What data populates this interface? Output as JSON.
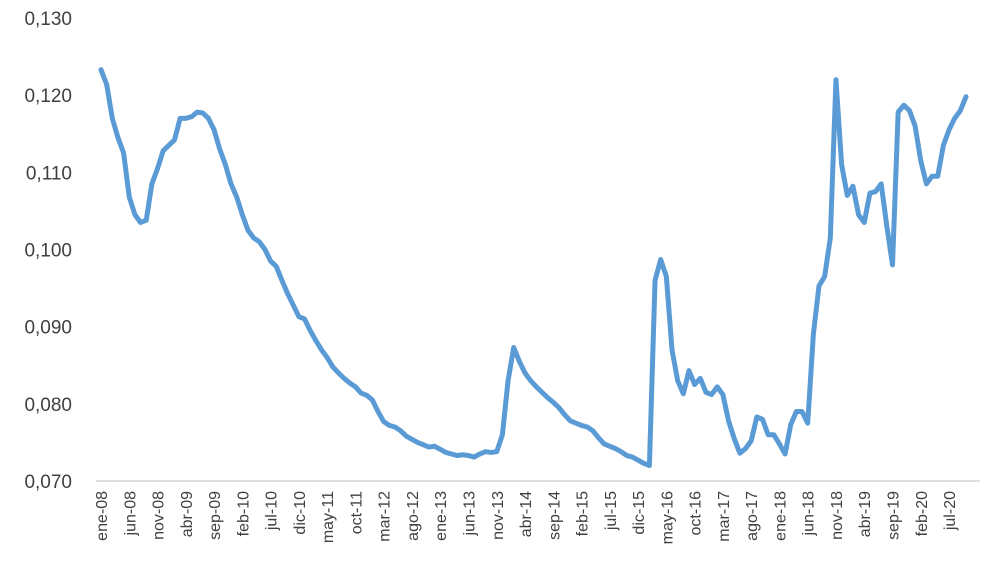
{
  "chart_data": {
    "type": "line",
    "title": "",
    "xlabel": "",
    "ylabel": "",
    "ylim": [
      0.07,
      0.13
    ],
    "yticks": [
      "0,130",
      "0,120",
      "0,110",
      "0,100",
      "0,090",
      "0,080",
      "0,070"
    ],
    "xticks": [
      "ene-08",
      "jun-08",
      "nov-08",
      "abr-09",
      "sep-09",
      "feb-10",
      "jul-10",
      "dic-10",
      "may-11",
      "oct-11",
      "mar-12",
      "ago-12",
      "ene-13",
      "jun-13",
      "nov-13",
      "abr-14",
      "sep-14",
      "feb-15",
      "jul-15",
      "dic-15",
      "may-16",
      "oct-16",
      "mar-17",
      "ago-17",
      "ene-18",
      "jun-18",
      "nov-18",
      "abr-19",
      "sep-19",
      "feb-20",
      "jul-20"
    ],
    "grid": false,
    "legend": "none",
    "line_color": "#5b9bd5",
    "series": [
      {
        "values": [
          0.1233,
          0.1214,
          0.117,
          0.1145,
          0.1125,
          0.1068,
          0.1045,
          0.1035,
          0.1038,
          0.1085,
          0.1105,
          0.1128,
          0.1135,
          0.1142,
          0.117,
          0.117,
          0.1172,
          0.1178,
          0.1177,
          0.117,
          0.1155,
          0.113,
          0.111,
          0.1085,
          0.1068,
          0.1045,
          0.1025,
          0.1015,
          0.101,
          0.1,
          0.0985,
          0.0978,
          0.096,
          0.0943,
          0.0928,
          0.0913,
          0.091,
          0.0895,
          0.0882,
          0.087,
          0.086,
          0.0848,
          0.084,
          0.0833,
          0.0827,
          0.0822,
          0.0814,
          0.0811,
          0.0805,
          0.079,
          0.0777,
          0.0772,
          0.077,
          0.0765,
          0.0758,
          0.0754,
          0.075,
          0.0747,
          0.0744,
          0.0745,
          0.0741,
          0.0737,
          0.0735,
          0.0733,
          0.0734,
          0.0733,
          0.0731,
          0.0735,
          0.0738,
          0.0737,
          0.0738,
          0.076,
          0.083,
          0.0873,
          0.0855,
          0.084,
          0.083,
          0.0822,
          0.0815,
          0.0808,
          0.0802,
          0.0795,
          0.0786,
          0.0778,
          0.0775,
          0.0772,
          0.077,
          0.0765,
          0.0756,
          0.0748,
          0.0745,
          0.0742,
          0.0738,
          0.0733,
          0.0731,
          0.0727,
          0.0723,
          0.072,
          0.096,
          0.0987,
          0.0965,
          0.087,
          0.083,
          0.0813,
          0.0843,
          0.0825,
          0.0833,
          0.0815,
          0.0812,
          0.0822,
          0.0812,
          0.0778,
          0.0755,
          0.0736,
          0.0742,
          0.0752,
          0.0783,
          0.078,
          0.076,
          0.076,
          0.0748,
          0.0735,
          0.0773,
          0.079,
          0.079,
          0.0775,
          0.089,
          0.0953,
          0.0965,
          0.1015,
          0.122,
          0.111,
          0.107,
          0.1082,
          0.1045,
          0.1035,
          0.1073,
          0.1075,
          0.1085,
          0.103,
          0.098,
          0.1178,
          0.1187,
          0.118,
          0.116,
          0.1115,
          0.1085,
          0.1095,
          0.1095,
          0.1135,
          0.1155,
          0.117,
          0.118,
          0.1198
        ]
      }
    ]
  }
}
